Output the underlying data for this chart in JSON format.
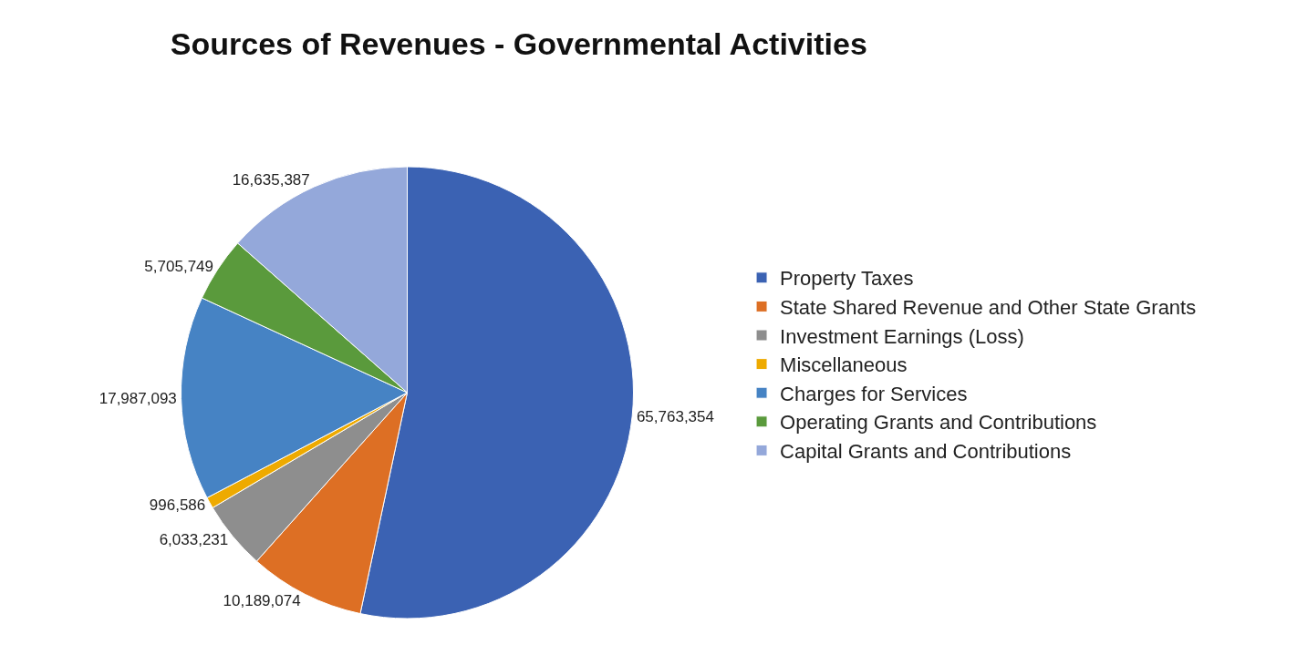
{
  "chart_data": {
    "type": "pie",
    "title": "Sources of Revenues - Governmental Activities",
    "categories": [
      "Property Taxes",
      "State Shared Revenue and Other State Grants",
      "Investment Earnings (Loss)",
      "Miscellaneous",
      "Charges for Services",
      "Operating Grants and Contributions",
      "Capital Grants and Contributions"
    ],
    "values": [
      65763354,
      10189074,
      6033231,
      996586,
      17987093,
      5705749,
      16635387
    ],
    "colors": [
      "#3b62b3",
      "#dd6f24",
      "#8e8e8e",
      "#eeaa00",
      "#4683c4",
      "#5a9a3c",
      "#94a8da"
    ],
    "value_labels": [
      "65,763,354",
      "10,189,074",
      "6,033,231",
      "996,586",
      "17,987,093",
      "5,705,749",
      "16,635,387"
    ],
    "legend": "right"
  }
}
